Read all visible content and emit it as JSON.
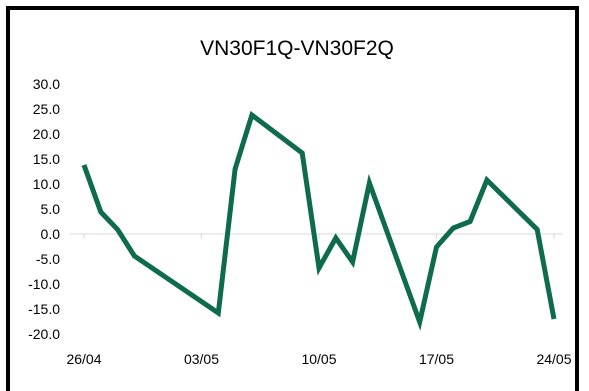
{
  "chart_data": {
    "type": "line",
    "title": "VN30F1Q-VN30F2Q",
    "xlabel": "",
    "ylabel": "",
    "ylim": [
      -20,
      30
    ],
    "yticks": [
      30,
      25,
      20,
      15,
      10,
      5,
      0,
      -5,
      -10,
      -15,
      -20
    ],
    "ytick_labels": [
      "30.0",
      "25.0",
      "20.0",
      "15.0",
      "10.0",
      "5.0",
      "0.0",
      "-5.0",
      "-10.0",
      "-15.0",
      "-20.0"
    ],
    "xticks": [
      {
        "label": "26/04",
        "x": 0
      },
      {
        "label": "03/05",
        "x": 7
      },
      {
        "label": "10/05",
        "x": 14
      },
      {
        "label": "17/05",
        "x": 21
      },
      {
        "label": "24/05",
        "x": 28
      }
    ],
    "grid": false,
    "legend": "none",
    "colors": {
      "line": "#0e6b4e"
    },
    "series": [
      {
        "x": [
          0,
          1,
          2,
          3,
          8,
          9,
          10,
          13,
          14,
          15,
          16,
          17,
          20,
          21,
          22,
          23,
          24,
          27,
          28
        ],
        "values": [
          13.8,
          4.4,
          0.9,
          -4.4,
          -15.8,
          13.0,
          23.8,
          16.2,
          -6.8,
          -0.8,
          -5.6,
          10.2,
          -17.6,
          -2.6,
          1.2,
          2.5,
          10.8,
          0.9,
          -17.0
        ]
      }
    ]
  }
}
